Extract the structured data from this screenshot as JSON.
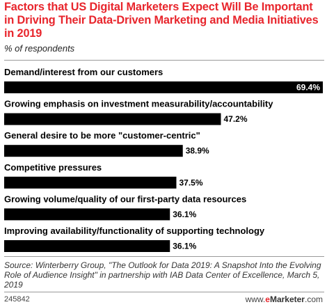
{
  "title": "Factors that US Digital Marketers Expect Will Be Important in Driving Their Data-Driven Marketing and Media Initiatives in 2019",
  "subtitle": "% of respondents",
  "chart_data": {
    "type": "bar",
    "orientation": "horizontal",
    "categories": [
      "Demand/interest from our customers",
      "Growing emphasis on investment measurability/accountability",
      "General desire to be more \"customer-centric\"",
      "Competitive pressures",
      "Growing volume/quality of our first-party data resources",
      "Improving availability/functionality of supporting technology"
    ],
    "values": [
      69.4,
      47.2,
      38.9,
      37.5,
      36.1,
      36.1
    ],
    "value_labels": [
      "69.4%",
      "47.2%",
      "38.9%",
      "37.5%",
      "36.1%",
      "36.1%"
    ],
    "bar_color": "#000000",
    "xlim": [
      0,
      69.4
    ]
  },
  "source": "Source: Winterberry Group, \"The Outlook for Data 2019: A Snapshot Into the Evolving Role of Audience Insight\" in partnership with IAB Data Center of Excellence, March 5, 2019",
  "footer": {
    "id": "245842",
    "brand_prefix": "www.",
    "brand_e": "e",
    "brand_rest": "Marketer",
    "brand_suffix": ".com"
  }
}
